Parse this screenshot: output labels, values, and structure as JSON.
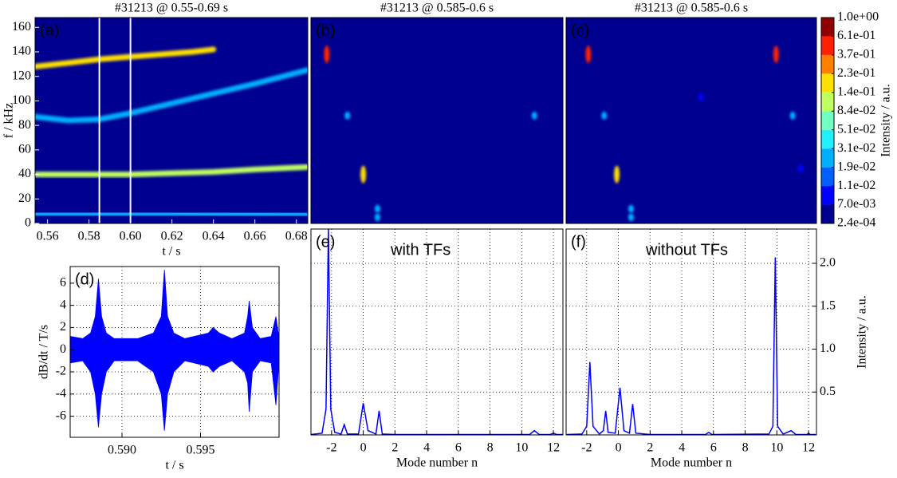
{
  "chart_data": [
    {
      "type": "spectrogram",
      "panel_label": "(a)",
      "title": "#31213 @ 0.55-0.69 s",
      "xlabel": "t / s",
      "ylabel": "f / kHz",
      "xlim": [
        0.554,
        0.6855
      ],
      "ylim": [
        0,
        168
      ],
      "xticks": [
        0.56,
        0.58,
        {
          "value": 0.6,
          "label": "0.60"
        },
        0.62,
        0.64,
        0.66,
        0.68
      ],
      "yticks": [
        0,
        20,
        40,
        60,
        80,
        100,
        120,
        140,
        160
      ],
      "markers": [
        0.585,
        0.6
      ],
      "features": [
        {
          "x": [
            0.554,
            0.57,
            0.585,
            0.6,
            0.615,
            0.63,
            0.64
          ],
          "values": [
            128,
            131,
            134,
            136,
            138,
            140,
            142
          ],
          "intensity": 0.2
        },
        {
          "x": [
            0.554,
            0.57,
            0.585,
            0.6,
            0.62,
            0.64,
            0.66,
            0.685
          ],
          "values": [
            87,
            84,
            85,
            90,
            98,
            106,
            114,
            125
          ],
          "intensity": 0.03
        },
        {
          "x": [
            0.554,
            0.58,
            0.6,
            0.62,
            0.64,
            0.66,
            0.685
          ],
          "values": [
            40,
            40,
            40,
            41,
            42,
            44,
            46
          ],
          "intensity": 0.1
        },
        {
          "x": [
            0.554,
            0.62,
            0.685
          ],
          "values": [
            8,
            8,
            7
          ],
          "intensity": 0.02
        },
        {
          "x": [
            0.554,
            0.62,
            0.685
          ],
          "values": [
            3,
            3,
            3
          ],
          "intensity": 0.015
        }
      ]
    },
    {
      "type": "scatter",
      "panel_label": "(b)",
      "title": "#31213 @ 0.585-0.6 s",
      "xlim": [
        -3.3,
        12.6
      ],
      "ylim": [
        0,
        168
      ],
      "x": [
        -2.3,
        -1.0,
        0.0,
        0.9,
        0.9,
        10.8
      ],
      "values": [
        138,
        88,
        40,
        12,
        5,
        88
      ],
      "intensity": [
        0.6,
        0.025,
        0.2,
        0.03,
        0.03,
        0.02
      ]
    },
    {
      "type": "scatter",
      "panel_label": "(c)",
      "title": "#31213 @ 0.585-0.6 s",
      "xlim": [
        -3.3,
        12.5
      ],
      "ylim": [
        0,
        168
      ],
      "x": [
        -1.9,
        9.95,
        -0.9,
        -0.1,
        0.8,
        0.8,
        11.0,
        11.5,
        5.2
      ],
      "values": [
        138,
        138,
        88,
        40,
        12,
        5,
        88,
        45,
        103
      ],
      "intensity": [
        0.6,
        0.6,
        0.025,
        0.2,
        0.03,
        0.03,
        0.02,
        0.01,
        0.01
      ],
      "colorbar": {
        "label": "Intensity / a.u.",
        "ticks": [
          {
            "value": 0.00024,
            "label": "2.4e-04"
          },
          {
            "value": 0.007,
            "label": "7.0e-03"
          },
          {
            "value": 0.011,
            "label": "1.1e-02"
          },
          {
            "value": 0.019,
            "label": "1.9e-02"
          },
          {
            "value": 0.031,
            "label": "3.1e-02"
          },
          {
            "value": 0.051,
            "label": "5.1e-02"
          },
          {
            "value": 0.084,
            "label": "8.4e-02"
          },
          {
            "value": 0.14,
            "label": "1.4e-01"
          },
          {
            "value": 0.23,
            "label": "2.3e-01"
          },
          {
            "value": 0.37,
            "label": "3.7e-01"
          },
          {
            "value": 0.61,
            "label": "6.1e-01"
          },
          {
            "value": 1.0,
            "label": "1.0e+00"
          }
        ],
        "colors": [
          "#000090",
          "#0000ff",
          "#0060ff",
          "#00b0ff",
          "#20f0ff",
          "#70ffc0",
          "#c0ff60",
          "#ffe000",
          "#ff8000",
          "#ff2000",
          "#900000"
        ]
      }
    },
    {
      "type": "area",
      "panel_label": "(d)",
      "xlabel": "t / s",
      "ylabel": "dB/dt / T/s",
      "color": "#0000ff",
      "grid": true,
      "xlim": [
        0.5867,
        0.6
      ],
      "ylim": [
        -7.9,
        7.5
      ],
      "xticks": [
        {
          "value": 0.59,
          "label": "0.590"
        },
        0.595
      ],
      "yticks": [
        -6,
        -4,
        -2,
        0,
        2,
        4,
        6
      ],
      "x": [
        0.5867,
        0.5875,
        0.588,
        0.5883,
        0.5885,
        0.5887,
        0.589,
        0.5895,
        0.591,
        0.592,
        0.5925,
        0.5927,
        0.5929,
        0.5933,
        0.594,
        0.5955,
        0.5958,
        0.5962,
        0.597,
        0.5978,
        0.598,
        0.5981,
        0.5983,
        0.5988,
        0.5995,
        0.5998,
        0.6
      ],
      "high": [
        1.2,
        1.0,
        1.5,
        3,
        6.4,
        3,
        1.5,
        1.0,
        1.0,
        1.5,
        3,
        7.2,
        3,
        1.5,
        1.0,
        1.5,
        2,
        1.5,
        1.0,
        1.5,
        3,
        4.4,
        2,
        1.0,
        1.2,
        3,
        1
      ],
      "low": [
        -1.2,
        -1.0,
        -2,
        -4,
        -7,
        -4,
        -2,
        -1.0,
        -1.0,
        -2,
        -4,
        -7.3,
        -4,
        -2,
        -1.0,
        -1.5,
        -2,
        -1.5,
        -1.0,
        -2,
        -3,
        -5.6,
        -2,
        -1.0,
        -1.2,
        -5,
        -1
      ]
    },
    {
      "type": "line",
      "panel_label": "(e)",
      "annotation": "with TFs",
      "xlabel": "Mode number n",
      "color": "#0000ff",
      "grid": true,
      "xlim": [
        -3.3,
        12.6
      ],
      "ylim": [
        0,
        2.4
      ],
      "xticks": [
        -2,
        0,
        2,
        4,
        6,
        8,
        10,
        12
      ],
      "x": [
        -3.3,
        -2.6,
        -2.35,
        -2.2,
        -2.05,
        -1.8,
        -1.4,
        -1.2,
        -1.0,
        -0.3,
        0,
        0.3,
        0.8,
        1,
        1.2,
        2,
        10.5,
        10.8,
        11.1,
        11.8,
        12,
        12.2,
        12.6
      ],
      "values": [
        0.005,
        0.02,
        0.3,
        2.4,
        0.3,
        0.03,
        0.01,
        0.12,
        0.01,
        0.01,
        0.37,
        0.05,
        0.01,
        0.28,
        0.01,
        0.005,
        0.005,
        0.05,
        0.005,
        0.005,
        0.02,
        0.005,
        0.005
      ]
    },
    {
      "type": "line",
      "panel_label": "(f)",
      "annotation": "without TFs",
      "xlabel": "Mode number n",
      "y2label": "Intensity / a.u.",
      "color": "#0000ff",
      "grid": true,
      "axis": "y2",
      "xlim": [
        -3.3,
        12.5
      ],
      "y2lim": [
        0,
        2.4
      ],
      "xticks": [
        -2,
        0,
        2,
        4,
        6,
        8,
        10,
        12
      ],
      "y2ticks": [
        0.5,
        {
          "value": 1,
          "label": "1.0"
        },
        1.5,
        {
          "value": 2,
          "label": "2.0"
        }
      ],
      "x": [
        -3.25,
        -2.3,
        -2.0,
        -1.8,
        -1.6,
        -1.2,
        -0.95,
        -0.8,
        -0.65,
        -0.2,
        0.1,
        0.35,
        0.7,
        0.9,
        1.1,
        2,
        5.5,
        5.7,
        5.9,
        9.5,
        9.75,
        9.9,
        10.05,
        10.4,
        10.9,
        11.2,
        11.9,
        12,
        12.1,
        12.45
      ],
      "values": [
        0.005,
        0.01,
        0.1,
        0.85,
        0.1,
        0.01,
        0.05,
        0.28,
        0.03,
        0.02,
        0.55,
        0.05,
        0.02,
        0.36,
        0.02,
        0.005,
        0.005,
        0.03,
        0.005,
        0.01,
        0.1,
        2.07,
        0.1,
        0.01,
        0.05,
        0.005,
        0.005,
        0.02,
        0.005,
        0.005
      ]
    }
  ]
}
